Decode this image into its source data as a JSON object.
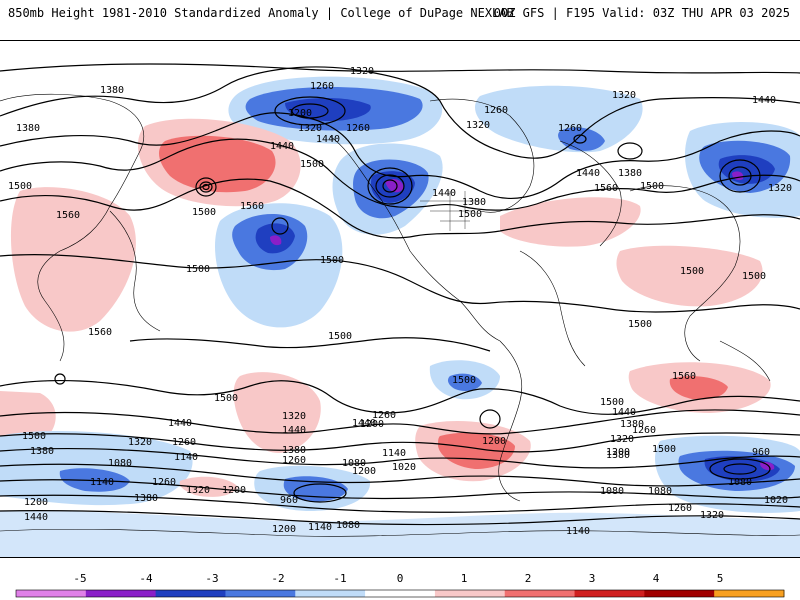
{
  "header": {
    "title": "850mb Height 1981-2010 Standardized Anomaly | College of DuPage NEXLAB",
    "run_info": "00Z GFS | F195 Valid: 03Z THU APR 03 2025"
  },
  "colors": {
    "neg5": "#e080e8",
    "neg4": "#8a1fc8",
    "neg3": "#1f3fc0",
    "neg2": "#4a78e0",
    "neg1": "#c0dcf8",
    "zero": "#ffffff",
    "pos1": "#f8c8c8",
    "pos2": "#f07070",
    "pos3": "#d02020",
    "pos4": "#a00000",
    "pos5": "#f8a020"
  },
  "colorbar": {
    "ticks": [
      "-5",
      "-4",
      "-3",
      "-2",
      "-1",
      "0",
      "1",
      "2",
      "3",
      "4",
      "5"
    ]
  },
  "contour_labels": [
    {
      "id": "c1",
      "text": "1320"
    },
    {
      "id": "c2",
      "text": "1380"
    },
    {
      "id": "c3",
      "text": "1380"
    },
    {
      "id": "c4",
      "text": "1260"
    },
    {
      "id": "c5",
      "text": "1200"
    },
    {
      "id": "c6",
      "text": "1260"
    },
    {
      "id": "c7",
      "text": "1320"
    },
    {
      "id": "c8",
      "text": "1440"
    },
    {
      "id": "c9",
      "text": "1440"
    },
    {
      "id": "c10",
      "text": "1500"
    },
    {
      "id": "c11",
      "text": "1500"
    },
    {
      "id": "c12",
      "text": "1560"
    },
    {
      "id": "c13",
      "text": "1500"
    },
    {
      "id": "c14",
      "text": "1560"
    },
    {
      "id": "c15",
      "text": "1500"
    },
    {
      "id": "c16",
      "text": "1500"
    },
    {
      "id": "c17",
      "text": "1500"
    },
    {
      "id": "c18",
      "text": "1440"
    },
    {
      "id": "c19",
      "text": "1380"
    },
    {
      "id": "c20",
      "text": "1500"
    },
    {
      "id": "c21",
      "text": "1260"
    },
    {
      "id": "c22",
      "text": "1320"
    },
    {
      "id": "c23",
      "text": "1320"
    },
    {
      "id": "c24",
      "text": "1260"
    },
    {
      "id": "c25",
      "text": "1440"
    },
    {
      "id": "c26",
      "text": "1380"
    },
    {
      "id": "c27",
      "text": "1560"
    },
    {
      "id": "c28",
      "text": "1500"
    },
    {
      "id": "c29",
      "text": "1440"
    },
    {
      "id": "c30",
      "text": "1320"
    },
    {
      "id": "c31",
      "text": "1500"
    },
    {
      "id": "c32",
      "text": "1500"
    },
    {
      "id": "c33",
      "text": "1500"
    },
    {
      "id": "c34",
      "text": "1500"
    },
    {
      "id": "c35",
      "text": "1500"
    },
    {
      "id": "c36",
      "text": "1560"
    },
    {
      "id": "c37",
      "text": "1500"
    },
    {
      "id": "c38",
      "text": "1440"
    },
    {
      "id": "c39",
      "text": "1380"
    },
    {
      "id": "c40",
      "text": "1320"
    },
    {
      "id": "c41",
      "text": "1260"
    },
    {
      "id": "c42",
      "text": "1500"
    },
    {
      "id": "c43",
      "text": "1380"
    },
    {
      "id": "c44",
      "text": "1260"
    },
    {
      "id": "c45",
      "text": "1440"
    },
    {
      "id": "c46",
      "text": "1200"
    },
    {
      "id": "c47",
      "text": "1140"
    },
    {
      "id": "c48",
      "text": "1080"
    },
    {
      "id": "c49",
      "text": "1020"
    },
    {
      "id": "c50",
      "text": "1200"
    },
    {
      "id": "c51",
      "text": "1260"
    },
    {
      "id": "c52",
      "text": "1320"
    },
    {
      "id": "c53",
      "text": "1380"
    },
    {
      "id": "c54",
      "text": "1440"
    },
    {
      "id": "c55",
      "text": "1500"
    },
    {
      "id": "c56",
      "text": "1560"
    },
    {
      "id": "c57",
      "text": "1440"
    },
    {
      "id": "c58",
      "text": "1380"
    },
    {
      "id": "c59",
      "text": "1320"
    },
    {
      "id": "c60",
      "text": "1260"
    },
    {
      "id": "c61",
      "text": "1200"
    },
    {
      "id": "c62",
      "text": "1140"
    },
    {
      "id": "c63",
      "text": "1080"
    },
    {
      "id": "c64",
      "text": "1260"
    },
    {
      "id": "c65",
      "text": "1380"
    },
    {
      "id": "c66",
      "text": "1320"
    },
    {
      "id": "c67",
      "text": "1200"
    },
    {
      "id": "c68",
      "text": "1140"
    },
    {
      "id": "c69",
      "text": "1200"
    },
    {
      "id": "c70",
      "text": "1440"
    },
    {
      "id": "c71",
      "text": "960"
    },
    {
      "id": "c72",
      "text": "1140"
    },
    {
      "id": "c73",
      "text": "1080"
    },
    {
      "id": "c74",
      "text": "1200"
    },
    {
      "id": "c75",
      "text": "1140"
    },
    {
      "id": "c76",
      "text": "1080"
    },
    {
      "id": "c77",
      "text": "1080"
    },
    {
      "id": "c78",
      "text": "1200"
    },
    {
      "id": "c79",
      "text": "1260"
    },
    {
      "id": "c80",
      "text": "1320"
    },
    {
      "id": "c81",
      "text": "1020"
    },
    {
      "id": "c82",
      "text": "960"
    },
    {
      "id": "c83",
      "text": "1080"
    }
  ]
}
